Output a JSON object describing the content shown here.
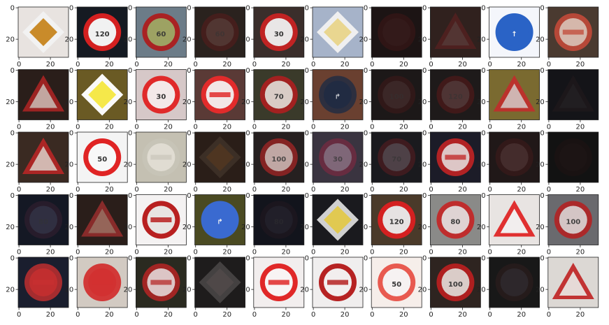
{
  "figure": {
    "rows": 5,
    "cols": 10,
    "x_ticks": [
      "0",
      "20"
    ],
    "y_ticks": [
      "0",
      "20"
    ],
    "tick_values": [
      0,
      20
    ],
    "image_size": 32
  },
  "thumbnails": [
    {
      "shape": "diamond",
      "bg": "#e8e3e0",
      "fill": "#c98b2a",
      "rim": "#f2f2f2",
      "sym": "",
      "tone": 1.0
    },
    {
      "shape": "circle",
      "bg": "#151a22",
      "fill": "#f1f1f1",
      "rim": "#d42020",
      "sym": "120",
      "tone": 1.0
    },
    {
      "shape": "circle",
      "bg": "#6c7c88",
      "fill": "#9bb06a",
      "rim": "#b01818",
      "sym": "60",
      "tone": 0.9
    },
    {
      "shape": "circle",
      "bg": "#2a221e",
      "fill": "#5c4b46",
      "rim": "#5a1c1c",
      "sym": "60",
      "tone": 0.55
    },
    {
      "shape": "circle",
      "bg": "#3a2e2b",
      "fill": "#e9e6e6",
      "rim": "#c02323",
      "sym": "30",
      "tone": 1.0
    },
    {
      "shape": "diamond",
      "bg": "#a6b3c9",
      "fill": "#e8d48a",
      "rim": "#f2f2f2",
      "sym": "",
      "tone": 0.95
    },
    {
      "shape": "circle",
      "bg": "#1c1414",
      "fill": "#3a2222",
      "rim": "#4d1616",
      "sym": "",
      "tone": 0.4
    },
    {
      "shape": "triangle",
      "bg": "#30211e",
      "fill": "#5a4a48",
      "rim": "#6a2020",
      "sym": "",
      "tone": 0.5
    },
    {
      "shape": "circle",
      "bg": "#f4f6fb",
      "fill": "#2a63c6",
      "rim": "#2a63c6",
      "sym": "↑",
      "tone": 1.0
    },
    {
      "shape": "circle",
      "bg": "#4a3a30",
      "fill": "#d8c3b8",
      "rim": "#c24a3a",
      "sym": "",
      "tone": 0.9
    },
    {
      "shape": "triangle",
      "bg": "#2a1e1a",
      "fill": "#c9bdb6",
      "rim": "#b02525",
      "sym": "",
      "tone": 0.85
    },
    {
      "shape": "diamond",
      "bg": "#6a5a24",
      "fill": "#f5e84a",
      "rim": "#fafafa",
      "sym": "",
      "tone": 1.0
    },
    {
      "shape": "circle",
      "bg": "#d6c8c8",
      "fill": "#f3e9e9",
      "rim": "#e02a2a",
      "sym": "30",
      "tone": 1.0
    },
    {
      "shape": "circle",
      "bg": "#5a3a36",
      "fill": "#f2e6e6",
      "rim": "#e22b2b",
      "sym": "",
      "tone": 1.0
    },
    {
      "shape": "circle",
      "bg": "#3a3a2a",
      "fill": "#dcd6d0",
      "rim": "#a82020",
      "sym": "70",
      "tone": 0.95
    },
    {
      "shape": "circle",
      "bg": "#6a4030",
      "fill": "#1e2a44",
      "rim": "#1e2a44",
      "sym": "↱",
      "tone": 0.8
    },
    {
      "shape": "circle",
      "bg": "#1c1818",
      "fill": "#4a3a3a",
      "rim": "#4a1818",
      "sym": "100",
      "tone": 0.45
    },
    {
      "shape": "circle",
      "bg": "#1e1a1a",
      "fill": "#5a4a4a",
      "rim": "#5c1a1a",
      "sym": "120",
      "tone": 0.55
    },
    {
      "shape": "triangle",
      "bg": "#7a6a30",
      "fill": "#d2c2c0",
      "rim": "#c22c2c",
      "sym": "",
      "tone": 0.9
    },
    {
      "shape": "triangle",
      "bg": "#141418",
      "fill": "#2a2a30",
      "rim": "#2a1c20",
      "sym": "",
      "tone": 0.35
    },
    {
      "shape": "triangle",
      "bg": "#3a2a22",
      "fill": "#d6c8c0",
      "rim": "#b82626",
      "sym": "",
      "tone": 0.9
    },
    {
      "shape": "circle",
      "bg": "#f4f4f4",
      "fill": "#f8f8f8",
      "rim": "#e02424",
      "sym": "50",
      "tone": 1.0
    },
    {
      "shape": "circle",
      "bg": "#c4c0b2",
      "fill": "#e6e2d8",
      "rim": "#c8c4b8",
      "sym": "",
      "tone": 0.8
    },
    {
      "shape": "diamond",
      "bg": "#2a1e18",
      "fill": "#5a3a1e",
      "rim": "#4a3a30",
      "sym": "",
      "tone": 0.6
    },
    {
      "shape": "circle",
      "bg": "#262020",
      "fill": "#d0c8c4",
      "rim": "#9c2424",
      "sym": "100",
      "tone": 0.8
    },
    {
      "shape": "circle",
      "bg": "#3a3440",
      "fill": "#8a8090",
      "rim": "#7a2a40",
      "sym": "30",
      "tone": 0.7
    },
    {
      "shape": "circle",
      "bg": "#1a1a1e",
      "fill": "#5a5c62",
      "rim": "#561c20",
      "sym": "70",
      "tone": 0.6
    },
    {
      "shape": "circle",
      "bg": "#1c1c28",
      "fill": "#e2d8d8",
      "rim": "#c22424",
      "sym": "",
      "tone": 0.9
    },
    {
      "shape": "circle",
      "bg": "#201818",
      "fill": "#5a4444",
      "rim": "#4a1a1a",
      "sym": "",
      "tone": 0.45
    },
    {
      "shape": "circle",
      "bg": "#121212",
      "fill": "#241c1c",
      "rim": "#2a1414",
      "sym": "",
      "tone": 0.3
    },
    {
      "shape": "circle",
      "bg": "#141824",
      "fill": "#3a4258",
      "rim": "#3a2032",
      "sym": "80",
      "tone": 0.5
    },
    {
      "shape": "triangle",
      "bg": "#2a1e1a",
      "fill": "#9a7a6a",
      "rim": "#a83030",
      "sym": "",
      "tone": 0.75
    },
    {
      "shape": "circle",
      "bg": "#f4f2f2",
      "fill": "#e8e4e2",
      "rim": "#b82020",
      "sym": "",
      "tone": 1.0
    },
    {
      "shape": "circle",
      "bg": "#4a4a22",
      "fill": "#3a6ad0",
      "rim": "#3a6ad0",
      "sym": "↱",
      "tone": 1.0
    },
    {
      "shape": "circle",
      "bg": "#12141c",
      "fill": "#2a2c3a",
      "rim": "#2a1a24",
      "sym": "80",
      "tone": 0.4
    },
    {
      "shape": "diamond",
      "bg": "#1a1a1e",
      "fill": "#e2c84a",
      "rim": "#dadada",
      "sym": "",
      "tone": 0.95
    },
    {
      "shape": "circle",
      "bg": "#4a3a2a",
      "fill": "#e6e2e2",
      "rim": "#d42020",
      "sym": "120",
      "tone": 1.0
    },
    {
      "shape": "circle",
      "bg": "#8a8a88",
      "fill": "#e0dcdc",
      "rim": "#c22828",
      "sym": "80",
      "tone": 0.95
    },
    {
      "shape": "triangle",
      "bg": "#e8e4e2",
      "fill": "#f2eeee",
      "rim": "#e03030",
      "sym": "",
      "tone": 1.0
    },
    {
      "shape": "circle",
      "bg": "#6a6a6e",
      "fill": "#d8d6d6",
      "rim": "#b22222",
      "sym": "100",
      "tone": 0.9
    },
    {
      "shape": "circle",
      "bg": "#1a1e2e",
      "fill": "#c83030",
      "rim": "#c83030",
      "sym": "",
      "tone": 0.8
    },
    {
      "shape": "circle",
      "bg": "#d2cac2",
      "fill": "#d23030",
      "rim": "#d23030",
      "sym": "",
      "tone": 0.95
    },
    {
      "shape": "circle",
      "bg": "#2a2a20",
      "fill": "#e6e2e2",
      "rim": "#b62424",
      "sym": "",
      "tone": 0.85
    },
    {
      "shape": "diamond",
      "bg": "#1e1c1c",
      "fill": "#5a5050",
      "rim": "#6a6666",
      "sym": "",
      "tone": 0.5
    },
    {
      "shape": "circle",
      "bg": "#f2eeee",
      "fill": "#f8f4f4",
      "rim": "#e02828",
      "sym": "",
      "tone": 1.0
    },
    {
      "shape": "circle",
      "bg": "#f0eeee",
      "fill": "#f2eeee",
      "rim": "#b62222",
      "sym": "",
      "tone": 1.0
    },
    {
      "shape": "circle",
      "bg": "#f6eeea",
      "fill": "#f6f2f2",
      "rim": "#e85a50",
      "sym": "50",
      "tone": 1.0
    },
    {
      "shape": "circle",
      "bg": "#2e2420",
      "fill": "#dcd6d2",
      "rim": "#b62020",
      "sym": "100",
      "tone": 0.95
    },
    {
      "shape": "circle",
      "bg": "#181818",
      "fill": "#3a3a44",
      "rim": "#3a2020",
      "sym": "",
      "tone": 0.4
    },
    {
      "shape": "triangle",
      "bg": "#dcd8d4",
      "fill": "#e8e4e0",
      "rim": "#c02a2a",
      "sym": "",
      "tone": 0.95
    }
  ]
}
